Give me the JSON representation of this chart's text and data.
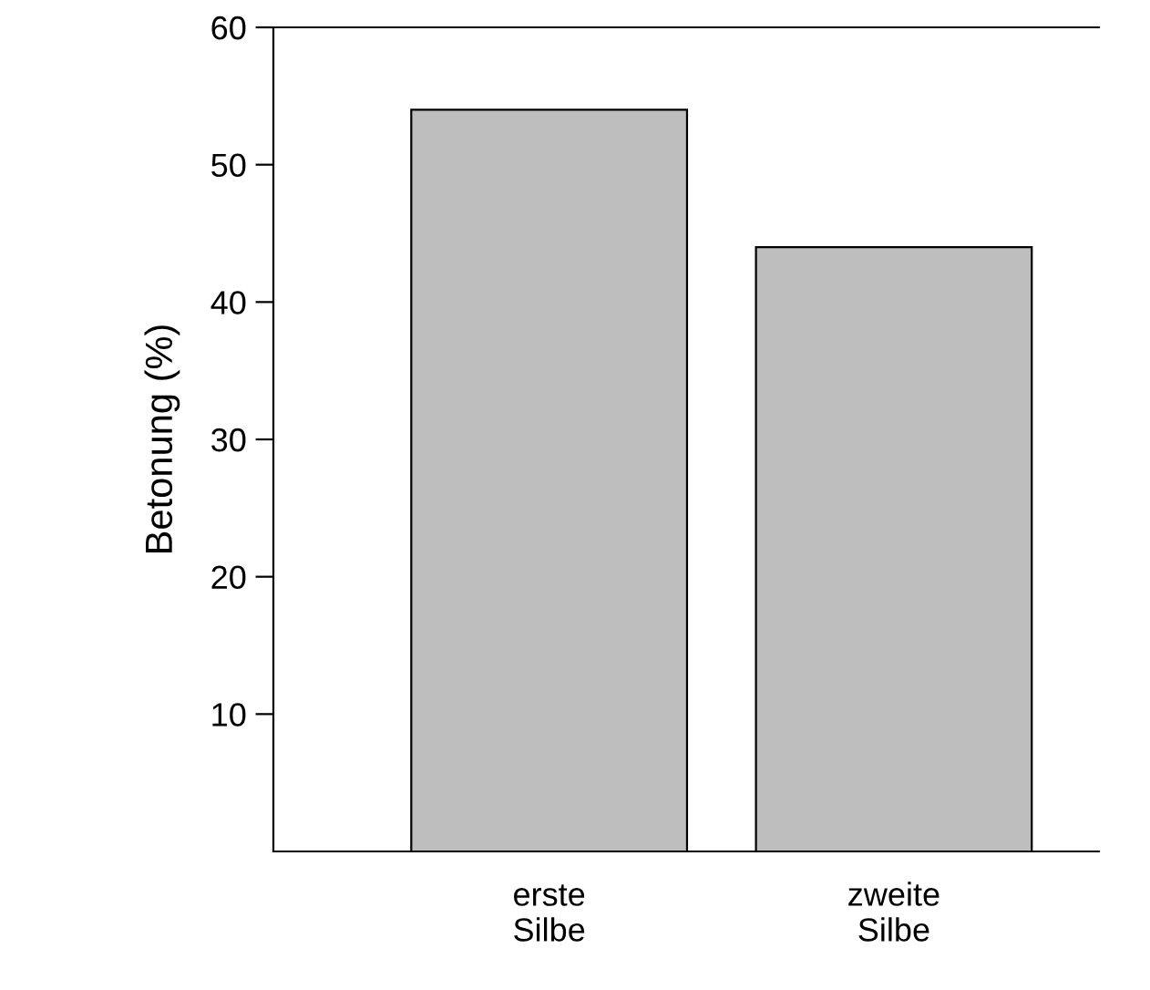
{
  "chart_data": {
    "type": "bar",
    "ylabel": "Betonung (%)",
    "categories": [
      "erste\nSilbe",
      "zweite\nSilbe"
    ],
    "values": [
      54,
      44
    ],
    "color": "#bebebe",
    "ylim": [
      0,
      60
    ],
    "yticks": [
      10,
      20,
      30,
      40,
      50,
      60
    ],
    "grid": false,
    "legend": false
  }
}
